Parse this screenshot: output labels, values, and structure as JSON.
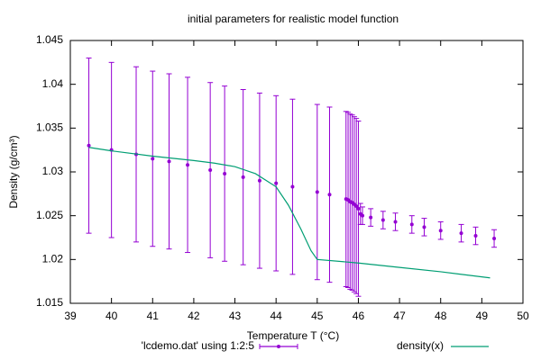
{
  "chart_data": {
    "type": "errorbar",
    "title": "initial parameters for realistic model function",
    "x_label": "Temperature T (°C)",
    "y_label": "Density (g/cm³)",
    "xlim": [
      39,
      50
    ],
    "xticks": [
      39,
      40,
      41,
      42,
      43,
      44,
      45,
      46,
      47,
      48,
      49,
      50
    ],
    "ylim": [
      1.015,
      1.045
    ],
    "yticks": [
      1.015,
      1.02,
      1.025,
      1.03,
      1.035,
      1.04,
      1.045
    ],
    "legend": "bottom",
    "series": [
      {
        "name": "'lcdemo.dat' using 1:2:5",
        "color": "#9400d3",
        "type": "errorbar",
        "x": [
          39.45,
          40.0,
          40.6,
          41.0,
          41.4,
          41.85,
          42.4,
          42.75,
          43.2,
          43.6,
          44.0,
          44.4,
          45.0,
          45.3,
          45.7,
          45.75,
          45.8,
          45.85,
          45.9,
          45.95,
          46.0,
          46.05,
          46.1,
          46.3,
          46.6,
          46.9,
          47.3,
          47.6,
          48.0,
          48.5,
          48.85,
          49.3
        ],
        "values": [
          1.033,
          1.0325,
          1.032,
          1.0315,
          1.0312,
          1.0308,
          1.0302,
          1.0298,
          1.0294,
          1.029,
          1.0287,
          1.0283,
          1.0277,
          1.0274,
          1.0269,
          1.0268,
          1.0266,
          1.0265,
          1.0263,
          1.0261,
          1.0258,
          1.0252,
          1.025,
          1.0248,
          1.0245,
          1.0243,
          1.024,
          1.0237,
          1.0233,
          1.023,
          1.0227,
          1.0224
        ],
        "errors": [
          0.01,
          0.01,
          0.01,
          0.01,
          0.01,
          0.01,
          0.01,
          0.01,
          0.01,
          0.01,
          0.01,
          0.01,
          0.01,
          0.01,
          0.01,
          0.01,
          0.01,
          0.01,
          0.01,
          0.01,
          0.01,
          0.0012,
          0.001,
          0.001,
          0.001,
          0.001,
          0.001,
          0.001,
          0.001,
          0.001,
          0.001,
          0.001
        ]
      },
      {
        "name": "density(x)",
        "color": "#009e73",
        "type": "line",
        "x": [
          39.45,
          40,
          41,
          42,
          42.5,
          43,
          43.5,
          44,
          44.3,
          44.6,
          44.85,
          45,
          46,
          47,
          48,
          49.2
        ],
        "values": [
          1.0328,
          1.0324,
          1.0318,
          1.0313,
          1.031,
          1.0306,
          1.0298,
          1.0283,
          1.0262,
          1.0235,
          1.021,
          1.02,
          1.0196,
          1.0191,
          1.0186,
          1.0179
        ]
      }
    ]
  }
}
